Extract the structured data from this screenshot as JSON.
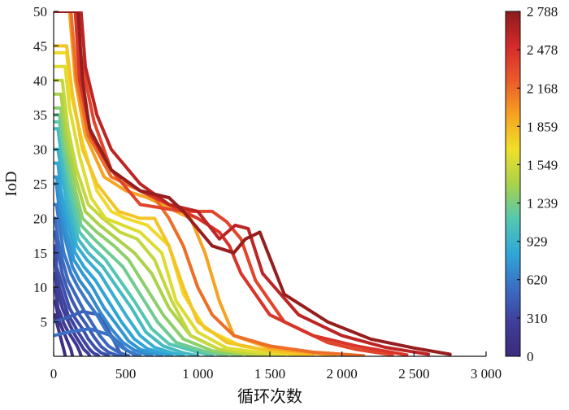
{
  "chart_data": {
    "type": "line",
    "xlabel": "循环次数",
    "ylabel": "IoD",
    "xlim": [
      0,
      3000
    ],
    "ylim": [
      0,
      50
    ],
    "x_ticks": [
      0,
      500,
      1000,
      1500,
      2000,
      2500,
      3000
    ],
    "x_tick_labels": [
      "0",
      "500",
      "1 000",
      "1 500",
      "2 000",
      "2 500",
      "3 000"
    ],
    "y_ticks": [
      5,
      10,
      15,
      20,
      25,
      30,
      35,
      40,
      45,
      50
    ],
    "y_tick_labels": [
      "5",
      "10",
      "15",
      "20",
      "25",
      "30",
      "35",
      "40",
      "45",
      "50"
    ],
    "colorbar": {
      "range": [
        0,
        2788
      ],
      "ticks": [
        0,
        310,
        620,
        929,
        1239,
        1549,
        1859,
        2168,
        2478,
        2788
      ],
      "tick_labels": [
        "0",
        "310",
        "620",
        "929",
        "1 239",
        "1 549",
        "1 859",
        "2 168",
        "2 478",
        "2 788"
      ],
      "colormap": [
        "#3b2a7a",
        "#3f3f9a",
        "#3a6fc4",
        "#2fa7d8",
        "#56c8b0",
        "#a9d24a",
        "#f0df2a",
        "#f6a321",
        "#ea5a2a",
        "#d42a2a",
        "#8c1c1c"
      ]
    },
    "grid": false,
    "series": [
      {
        "life": 2750,
        "x": [
          0,
          170,
          200,
          250,
          400,
          600,
          800,
          900,
          1100,
          1250,
          1330,
          1430,
          1600,
          1900,
          2200,
          2500,
          2750
        ],
        "y": [
          50,
          50,
          40,
          33,
          27,
          24,
          23,
          21,
          16,
          15,
          17,
          18,
          9,
          5,
          2.5,
          1.2,
          0.3
        ]
      },
      {
        "life": 2600,
        "x": [
          0,
          190,
          220,
          300,
          400,
          600,
          800,
          1000,
          1150,
          1260,
          1350,
          1450,
          1700,
          2000,
          2300,
          2600
        ],
        "y": [
          50,
          50,
          42,
          35,
          30,
          25,
          22,
          21,
          17,
          19,
          18.5,
          12,
          6,
          3,
          1.3,
          0.3
        ]
      },
      {
        "life": 2450,
        "x": [
          0,
          150,
          180,
          260,
          400,
          600,
          800,
          1000,
          1150,
          1220,
          1300,
          1500,
          1800,
          2100,
          2450
        ],
        "y": [
          50,
          50,
          40,
          32,
          27,
          24,
          22,
          20,
          18,
          16,
          12,
          6,
          3,
          1.5,
          0.2
        ]
      },
      {
        "life": 2350,
        "x": [
          0,
          150,
          200,
          280,
          400,
          600,
          750,
          900,
          1000,
          1100,
          1200,
          1300,
          1400,
          1600,
          1900,
          2100,
          2350
        ],
        "y": [
          50,
          50,
          42,
          34,
          27,
          22,
          21.5,
          21,
          21,
          21,
          19.5,
          17,
          11,
          5,
          2,
          1,
          0.2
        ]
      },
      {
        "life": 2150,
        "x": [
          0,
          120,
          160,
          240,
          400,
          600,
          700,
          800,
          900,
          1000,
          1100,
          1250,
          1500,
          1800,
          2150
        ],
        "y": [
          50,
          50,
          40,
          32,
          26,
          24,
          23,
          20,
          16,
          10,
          6,
          3,
          1.5,
          0.6,
          0.1
        ]
      },
      {
        "life": 1950,
        "x": [
          0,
          110,
          150,
          220,
          350,
          500,
          650,
          800,
          950,
          1050,
          1150,
          1250,
          1500,
          1950
        ],
        "y": [
          50,
          50,
          40,
          32,
          26,
          24,
          23,
          21.5,
          20,
          15,
          8,
          3,
          1.2,
          0.1
        ]
      },
      {
        "life": 1800,
        "x": [
          0,
          90,
          130,
          200,
          300,
          450,
          600,
          700,
          800,
          900,
          1000,
          1200,
          1500,
          1800
        ],
        "y": [
          45,
          45,
          38,
          30,
          25,
          21,
          20,
          20,
          16,
          10,
          5,
          2,
          0.8,
          0.1
        ]
      },
      {
        "life": 1700,
        "x": [
          0,
          90,
          120,
          200,
          300,
          400,
          500,
          650,
          800,
          900,
          1050,
          1300,
          1700
        ],
        "y": [
          44,
          44,
          38,
          31,
          24,
          21,
          20,
          19,
          16,
          9,
          4,
          1.5,
          0.1
        ]
      },
      {
        "life": 1600,
        "x": [
          0,
          80,
          110,
          180,
          260,
          360,
          480,
          600,
          750,
          850,
          1000,
          1200,
          1600
        ],
        "y": [
          42,
          42,
          36,
          29,
          23,
          20,
          19,
          18,
          15,
          8,
          3.5,
          1.2,
          0.1
        ]
      },
      {
        "life": 1500,
        "x": [
          0,
          60,
          100,
          160,
          240,
          340,
          460,
          580,
          700,
          820,
          950,
          1150,
          1500
        ],
        "y": [
          40,
          40,
          33,
          27,
          22,
          20,
          18,
          17,
          14,
          8,
          3,
          1,
          0.1
        ]
      },
      {
        "life": 1400,
        "x": [
          0,
          50,
          90,
          150,
          220,
          320,
          440,
          560,
          680,
          800,
          950,
          1150,
          1400
        ],
        "y": [
          38,
          38,
          32,
          26,
          21,
          19,
          17,
          15,
          12,
          7,
          3,
          1,
          0.1
        ]
      },
      {
        "life": 1300,
        "x": [
          0,
          50,
          80,
          140,
          200,
          300,
          420,
          520,
          640,
          760,
          900,
          1100,
          1300
        ],
        "y": [
          36,
          36,
          31,
          25,
          20,
          18,
          16,
          14,
          10,
          6,
          2.5,
          0.8,
          0.1
        ]
      },
      {
        "life": 1200,
        "x": [
          0,
          40,
          70,
          130,
          190,
          280,
          380,
          480,
          600,
          720,
          850,
          1050,
          1200
        ],
        "y": [
          35,
          35,
          30,
          24,
          19,
          17,
          15,
          13,
          9,
          5,
          2,
          0.7,
          0.1
        ]
      },
      {
        "life": 1100,
        "x": [
          0,
          40,
          70,
          120,
          180,
          260,
          360,
          460,
          560,
          680,
          800,
          1000,
          1100
        ],
        "y": [
          34,
          34,
          29,
          23,
          18,
          16,
          14,
          11,
          8,
          4,
          1.8,
          0.6,
          0.1
        ]
      },
      {
        "life": 1000,
        "x": [
          0,
          30,
          60,
          110,
          170,
          240,
          340,
          440,
          540,
          640,
          760,
          900,
          1000
        ],
        "y": [
          33,
          33,
          28,
          22,
          17,
          15,
          13,
          10,
          7,
          3.5,
          1.5,
          0.5,
          0.1
        ]
      },
      {
        "life": 900,
        "x": [
          0,
          30,
          60,
          100,
          160,
          230,
          320,
          410,
          500,
          600,
          700,
          820,
          900
        ],
        "y": [
          30,
          30,
          26,
          21,
          16,
          14,
          12,
          9,
          6,
          3,
          1.3,
          0.5,
          0.1
        ]
      },
      {
        "life": 820,
        "x": [
          0,
          30,
          50,
          90,
          150,
          210,
          290,
          380,
          470,
          560,
          650,
          760,
          820
        ],
        "y": [
          28,
          28,
          24,
          20,
          15,
          13,
          11,
          8,
          5,
          2.5,
          1.1,
          0.4,
          0.1
        ]
      },
      {
        "life": 750,
        "x": [
          0,
          20,
          50,
          90,
          140,
          200,
          270,
          350,
          440,
          520,
          600,
          700,
          750
        ],
        "y": [
          26,
          26,
          22,
          18,
          14,
          12,
          10,
          7,
          4.5,
          2.2,
          1,
          0.4,
          0.1
        ]
      },
      {
        "life": 680,
        "x": [
          0,
          20,
          40,
          80,
          130,
          180,
          250,
          320,
          400,
          480,
          560,
          640,
          680
        ],
        "y": [
          25,
          25,
          21,
          17,
          13,
          11,
          9,
          6.5,
          4,
          2,
          0.9,
          0.3,
          0.1
        ]
      },
      {
        "life": 600,
        "x": [
          0,
          20,
          40,
          70,
          120,
          170,
          230,
          300,
          370,
          440,
          510,
          570,
          600
        ],
        "y": [
          22,
          22,
          19,
          15,
          12,
          10,
          8,
          6,
          3.5,
          1.8,
          0.8,
          0.3,
          0.1
        ]
      },
      {
        "life": 520,
        "x": [
          0,
          10,
          30,
          60,
          100,
          150,
          200,
          260,
          320,
          380,
          440,
          500,
          520
        ],
        "y": [
          20,
          20,
          17,
          14,
          11,
          9,
          7,
          5,
          3,
          1.5,
          0.7,
          0.2,
          0.1
        ]
      },
      {
        "life": 450,
        "x": [
          0,
          10,
          30,
          60,
          90,
          130,
          180,
          230,
          280,
          330,
          380,
          430,
          450
        ],
        "y": [
          18,
          18,
          15,
          12,
          10,
          8,
          6,
          4.5,
          2.8,
          1.4,
          0.6,
          0.2,
          0.1
        ]
      },
      {
        "life": 380,
        "x": [
          0,
          10,
          20,
          50,
          80,
          110,
          150,
          200,
          240,
          290,
          330,
          370,
          380
        ],
        "y": [
          16,
          16,
          13,
          11,
          9,
          7,
          5.5,
          4,
          2.5,
          1.2,
          0.5,
          0.2,
          0.1
        ]
      },
      {
        "life": 310,
        "x": [
          0,
          10,
          20,
          40,
          70,
          100,
          130,
          170,
          210,
          250,
          280,
          305,
          310
        ],
        "y": [
          14,
          14,
          12,
          10,
          8,
          6,
          5,
          3.5,
          2.2,
          1,
          0.4,
          0.2,
          0.1
        ]
      },
      {
        "life": 250,
        "x": [
          0,
          10,
          20,
          40,
          60,
          90,
          120,
          150,
          180,
          210,
          240,
          250
        ],
        "y": [
          12,
          12,
          10,
          8.5,
          7,
          5.5,
          4.2,
          3,
          2,
          1,
          0.4,
          0.1
        ]
      },
      {
        "life": 190,
        "x": [
          0,
          10,
          20,
          30,
          50,
          70,
          100,
          130,
          160,
          180,
          190
        ],
        "y": [
          10,
          10,
          8.5,
          7,
          6,
          4.8,
          3.6,
          2.6,
          1.6,
          0.7,
          0.1
        ]
      },
      {
        "life": 130,
        "x": [
          0,
          10,
          20,
          30,
          40,
          60,
          80,
          100,
          120,
          130
        ],
        "y": [
          8,
          8,
          7,
          6,
          5,
          4,
          3,
          2,
          1,
          0.1
        ]
      },
      {
        "life": 80,
        "x": [
          0,
          10,
          20,
          30,
          40,
          50,
          60,
          70,
          80
        ],
        "y": [
          6,
          6,
          5,
          4.2,
          3.4,
          2.6,
          1.8,
          1,
          0.1
        ]
      },
      {
        "life": 470,
        "x": [
          0,
          80,
          200,
          320,
          400,
          470
        ],
        "y": [
          5,
          5.5,
          6.5,
          6,
          3,
          0.1
        ]
      },
      {
        "life": 570,
        "x": [
          0,
          100,
          250,
          400,
          500,
          570
        ],
        "y": [
          3,
          3.5,
          4,
          3,
          1,
          0.1
        ]
      }
    ]
  }
}
